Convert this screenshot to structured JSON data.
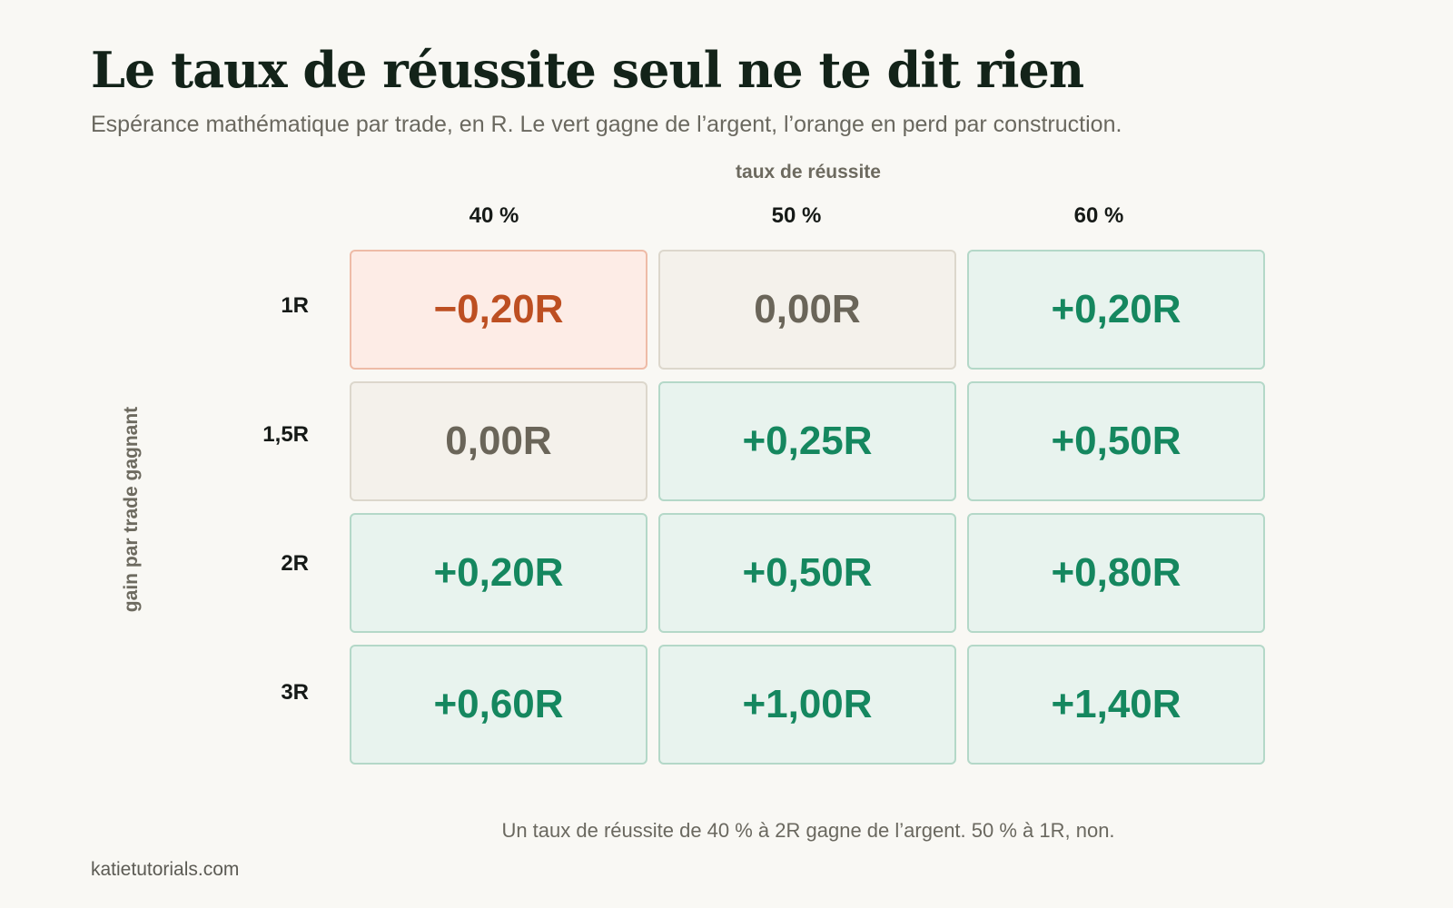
{
  "title": "Le taux de réussite seul ne te dit rien",
  "subtitle": "Espérance mathématique par trade, en R. Le vert gagne de l’argent, l’orange en perd par construction.",
  "footnote": "Un taux de réussite de 40 % à 2R gagne de l’argent. 50 % à 1R, non.",
  "source": "katietutorials.com",
  "colors": {
    "positive_text": "#15875f",
    "positive_bg": "#e8f3ee",
    "neutral_text": "#6a6559",
    "neutral_bg": "#f4f1eb",
    "negative_text": "#bd4f22",
    "negative_bg": "#fdece6"
  },
  "chart_data": {
    "type": "heatmap",
    "xlabel": "taux de réussite",
    "ylabel": "gain par trade gagnant",
    "x": [
      "40 %",
      "50 %",
      "60 %"
    ],
    "y": [
      "1R",
      "1,5R",
      "2R",
      "3R"
    ],
    "values": [
      [
        -0.2,
        0.0,
        0.2
      ],
      [
        0.0,
        0.25,
        0.5
      ],
      [
        0.2,
        0.5,
        0.8
      ],
      [
        0.6,
        1.0,
        1.4
      ]
    ],
    "labels": [
      [
        "−0,20R",
        "0,00R",
        "+0,20R"
      ],
      [
        "0,00R",
        "+0,25R",
        "+0,50R"
      ],
      [
        "+0,20R",
        "+0,50R",
        "+0,80R"
      ],
      [
        "+0,60R",
        "+1,00R",
        "+1,40R"
      ]
    ]
  }
}
